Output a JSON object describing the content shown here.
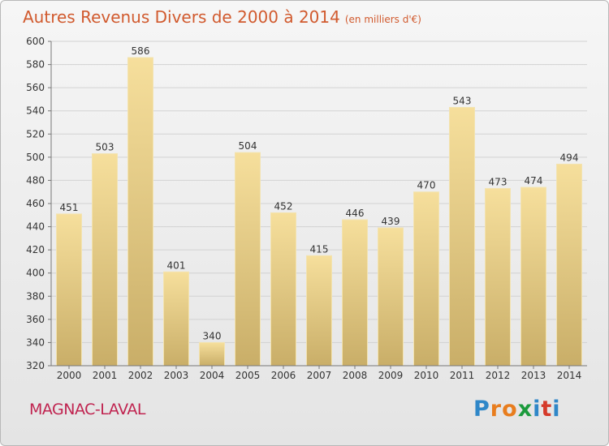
{
  "header": {
    "title": "Autres Revenus Divers de 2000 à 2014",
    "subtitle": "(en milliers d'€)"
  },
  "footer": {
    "location": "MAGNAC-LAVAL",
    "brand_letters": [
      "P",
      "r",
      "o",
      "x",
      "i",
      "t",
      "i"
    ],
    "brand_colors": [
      "#2f87c8",
      "#e87d1e",
      "#e87d1e",
      "#1b9a3c",
      "#2f87c8",
      "#d53a2a",
      "#2f87c8"
    ]
  },
  "colors": {
    "title": "#d15a2e",
    "location": "#c02450",
    "bar_light": "#f6df9c",
    "bar_dark": "#c9ae68"
  },
  "chart_data": {
    "type": "bar",
    "categories": [
      "2000",
      "2001",
      "2002",
      "2003",
      "2004",
      "2005",
      "2006",
      "2007",
      "2008",
      "2009",
      "2010",
      "2011",
      "2012",
      "2013",
      "2014"
    ],
    "values": [
      451,
      503,
      586,
      401,
      340,
      504,
      452,
      415,
      446,
      439,
      470,
      543,
      473,
      474,
      494
    ],
    "ylim": [
      320,
      600
    ],
    "yticks": [
      320,
      340,
      360,
      380,
      400,
      420,
      440,
      460,
      480,
      500,
      520,
      540,
      560,
      580,
      600
    ],
    "grid": true,
    "data_labels": true
  }
}
